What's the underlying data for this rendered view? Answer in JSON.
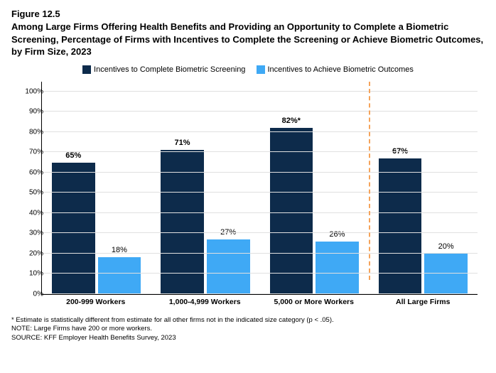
{
  "figure_number": "Figure 12.5",
  "title": "Among Large Firms Offering Health Benefits and Providing an Opportunity to Complete a Biometric Screening, Percentage of Firms with Incentives to Complete the Screening or Achieve Biometric Outcomes, by Firm Size, 2023",
  "legend": {
    "series1": {
      "label": "Incentives to Complete Biometric Screening",
      "color": "#0d2b4b"
    },
    "series2": {
      "label": "Incentives to Achieve Biometric Outcomes",
      "color": "#3fa9f5"
    }
  },
  "chart": {
    "type": "bar",
    "ylim": [
      0,
      105
    ],
    "yticks": [
      0,
      10,
      20,
      30,
      40,
      50,
      60,
      70,
      80,
      90,
      100
    ],
    "ytick_labels": [
      "0%",
      "10%",
      "20%",
      "30%",
      "40%",
      "50%",
      "60%",
      "70%",
      "80%",
      "90%",
      "100%"
    ],
    "grid_color": "#e0e0e0",
    "divider_after_index": 2,
    "divider_color": "#f5a35a",
    "categories": [
      {
        "label": "200-999 Workers",
        "v1": 65,
        "t1": "65%",
        "v2": 18,
        "t2": "18%"
      },
      {
        "label": "1,000-4,999 Workers",
        "v1": 71,
        "t1": "71%",
        "v2": 27,
        "t2": "27%"
      },
      {
        "label": "5,000 or More Workers",
        "v1": 82,
        "t1": "82%*",
        "v2": 26,
        "t2": "26%"
      },
      {
        "label": "All Large Firms",
        "v1": 67,
        "t1": "67%",
        "v2": 20,
        "t2": "20%"
      }
    ]
  },
  "footnotes": {
    "f1": "* Estimate is statistically different from estimate for all other firms not in the indicated size category (p < .05).",
    "f2": "NOTE: Large Firms have 200 or more workers.",
    "f3": "SOURCE: KFF Employer Health Benefits Survey, 2023"
  }
}
